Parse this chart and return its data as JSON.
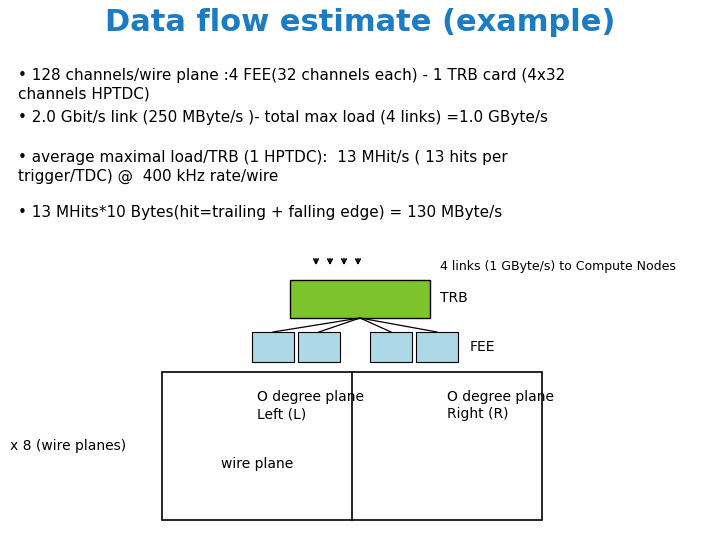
{
  "title": "Data flow estimate (example)",
  "title_color": "#1B7BC4",
  "title_fontsize": 22,
  "bg_color": "#FFFFFF",
  "bullet_points": [
    "128 channels/wire plane :4 FEE(32 channels each) - 1 TRB card (4x32\nchannels HPTDC)",
    "2.0 Gbit/s link (250 MByte/s )- total max load (4 links) =1.0 GByte/s",
    "average maximal load/TRB (1 HPTDC):  13 MHit/s ( 13 hits per\ntrigger/TDC) @  400 kHz rate/wire",
    "13 MHits*10 Bytes(hit=trailing + falling edge) = 130 MByte/s"
  ],
  "bullet_fontsize": 11,
  "bullet_color": "#000000",
  "trb_color": "#7DC42C",
  "fee_color": "#ADD8E6",
  "wire_plane_color": "#FFFFFF",
  "label_trb": "TRB",
  "label_fee": "FEE",
  "label_links": "4 links (1 GByte/s) to Compute Nodes",
  "label_left": "O degree plane\nLeft (L)",
  "label_right": "O degree plane\nRight (R)",
  "label_wire": "wire plane",
  "label_x8": "x 8 (wire planes)",
  "diagram_font": 10
}
